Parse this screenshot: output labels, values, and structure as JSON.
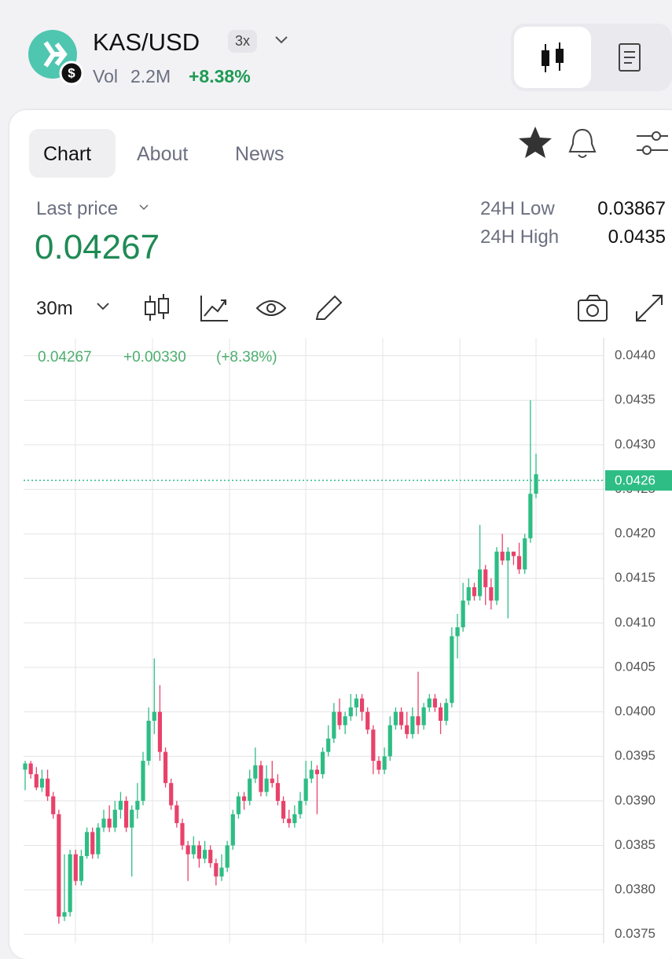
{
  "header": {
    "pair": "KAS/USD",
    "leverage": "3x",
    "volume_label": "Vol",
    "volume": "2.2M",
    "change": "+8.38%"
  },
  "tabs": [
    "Chart",
    "About",
    "News"
  ],
  "price": {
    "last_label": "Last price",
    "last": "0.04267",
    "low_label": "24H Low",
    "low": "0.03867",
    "high_label": "24H High",
    "high": "0.0435"
  },
  "toolbar": {
    "interval": "30m"
  },
  "chart_data": {
    "type": "candlestick",
    "legend": {
      "price": "0.04267",
      "change": "+0.00330",
      "percent": "(+8.38%)"
    },
    "up_color": "#2ebd85",
    "down_color": "#e8426a",
    "grid": true,
    "price_line": 0.0426,
    "ylim": [
      0.0374,
      0.0442
    ],
    "yticks": [
      {
        "value": 0.044,
        "label": "0.0440"
      },
      0.0435,
      {
        "value": 0.043,
        "label": "0.0430"
      },
      0.0425,
      {
        "value": 0.042,
        "label": "0.0420"
      },
      0.0415,
      {
        "value": 0.041,
        "label": "0.0410"
      },
      0.0405,
      {
        "value": 0.04,
        "label": "0.0400"
      },
      0.0395,
      {
        "value": 0.039,
        "label": "0.0390"
      },
      0.0385,
      {
        "value": 0.038,
        "label": "0.0380"
      },
      0.0375
    ],
    "open": [
      0.03935,
      0.03942,
      0.0393,
      0.03915,
      0.03925,
      0.03905,
      0.03885,
      0.0377,
      0.03775,
      0.0384,
      0.0381,
      0.03838,
      0.03865,
      0.0384,
      0.0387,
      0.0388,
      0.0387,
      0.0389,
      0.039,
      0.0387,
      0.0389,
      0.039,
      0.03945,
      0.0399,
      0.04,
      0.03955,
      0.0392,
      0.03895,
      0.03875,
      0.0385,
      0.0384,
      0.0385,
      0.03835,
      0.03845,
      0.0383,
      0.03815,
      0.03825,
      0.0385,
      0.03885,
      0.03905,
      0.039,
      0.03925,
      0.0394,
      0.0391,
      0.03925,
      0.0392,
      0.039,
      0.0388,
      0.03875,
      0.03885,
      0.039,
      0.03925,
      0.03935,
      0.0393,
      0.03955,
      0.0397,
      0.04,
      0.03985,
      0.03995,
      0.04005,
      0.04015,
      0.04,
      0.0398,
      0.03945,
      0.03935,
      0.0395,
      0.03985,
      0.04,
      0.03985,
      0.03975,
      0.03995,
      0.03985,
      0.04005,
      0.04015,
      0.04005,
      0.0399,
      0.0401,
      0.04085,
      0.04095,
      0.04125,
      0.0414,
      0.0413,
      0.0416,
      0.0414,
      0.04125,
      0.0418,
      0.0417,
      0.0418,
      0.04175,
      0.0416,
      0.04195,
      0.04245
    ],
    "high": [
      0.03945,
      0.03945,
      0.03938,
      0.03935,
      0.03935,
      0.0391,
      0.0389,
      0.0384,
      0.03845,
      0.03845,
      0.03845,
      0.0387,
      0.0387,
      0.03875,
      0.0389,
      0.03895,
      0.039,
      0.0391,
      0.03905,
      0.03895,
      0.0392,
      0.03955,
      0.04005,
      0.0406,
      0.0403,
      0.0396,
      0.03925,
      0.039,
      0.0388,
      0.03855,
      0.0386,
      0.03855,
      0.03855,
      0.0385,
      0.03835,
      0.0384,
      0.03855,
      0.0389,
      0.0391,
      0.0391,
      0.03935,
      0.0396,
      0.03945,
      0.0394,
      0.03945,
      0.0393,
      0.03905,
      0.0389,
      0.03895,
      0.0391,
      0.03945,
      0.03945,
      0.0394,
      0.0396,
      0.03985,
      0.0401,
      0.04015,
      0.04,
      0.0402,
      0.0402,
      0.0402,
      0.04005,
      0.03985,
      0.0395,
      0.0396,
      0.03995,
      0.04005,
      0.04005,
      0.04,
      0.04005,
      0.04045,
      0.0401,
      0.0402,
      0.0402,
      0.0401,
      0.04015,
      0.04095,
      0.0411,
      0.04145,
      0.0415,
      0.04145,
      0.0421,
      0.04165,
      0.0415,
      0.04185,
      0.042,
      0.04185,
      0.0418,
      0.0419,
      0.042,
      0.0435,
      0.0429
    ],
    "low": [
      0.03912,
      0.03925,
      0.03912,
      0.0391,
      0.039,
      0.0388,
      0.03762,
      0.03765,
      0.0377,
      0.03805,
      0.03805,
      0.03835,
      0.03835,
      0.03835,
      0.03865,
      0.03865,
      0.03865,
      0.0388,
      0.03865,
      0.03815,
      0.0388,
      0.03895,
      0.0394,
      0.03975,
      0.03945,
      0.03915,
      0.0389,
      0.0387,
      0.03845,
      0.0381,
      0.03835,
      0.03825,
      0.0383,
      0.03825,
      0.03805,
      0.0381,
      0.0382,
      0.03845,
      0.0388,
      0.0389,
      0.03895,
      0.0392,
      0.03905,
      0.03905,
      0.03915,
      0.03895,
      0.03875,
      0.0387,
      0.0387,
      0.0388,
      0.03895,
      0.0392,
      0.03885,
      0.03925,
      0.0395,
      0.03965,
      0.0398,
      0.03975,
      0.0399,
      0.03995,
      0.0399,
      0.03975,
      0.0393,
      0.0393,
      0.0393,
      0.03945,
      0.0398,
      0.0398,
      0.0397,
      0.0397,
      0.03975,
      0.0398,
      0.04,
      0.04,
      0.03975,
      0.03985,
      0.04005,
      0.0406,
      0.0409,
      0.0412,
      0.04125,
      0.04125,
      0.0412,
      0.04115,
      0.0412,
      0.04165,
      0.04105,
      0.04165,
      0.04155,
      0.04155,
      0.0419,
      0.0424
    ],
    "close": [
      0.03942,
      0.0393,
      0.03915,
      0.03925,
      0.03905,
      0.03885,
      0.0377,
      0.03775,
      0.0384,
      0.0381,
      0.03838,
      0.03865,
      0.0384,
      0.0387,
      0.0388,
      0.0387,
      0.0389,
      0.039,
      0.0387,
      0.0389,
      0.039,
      0.03945,
      0.0399,
      0.04,
      0.03955,
      0.0392,
      0.03895,
      0.03875,
      0.0385,
      0.0384,
      0.0385,
      0.03835,
      0.03845,
      0.0383,
      0.03815,
      0.03825,
      0.0385,
      0.03885,
      0.03905,
      0.039,
      0.03925,
      0.0394,
      0.0391,
      0.03925,
      0.0392,
      0.039,
      0.0388,
      0.03875,
      0.03885,
      0.039,
      0.03925,
      0.03935,
      0.0393,
      0.03955,
      0.0397,
      0.04,
      0.03985,
      0.03995,
      0.04005,
      0.04015,
      0.04,
      0.0398,
      0.03945,
      0.03935,
      0.0395,
      0.03985,
      0.04,
      0.03985,
      0.03975,
      0.03995,
      0.03985,
      0.04005,
      0.04015,
      0.04005,
      0.0399,
      0.0401,
      0.04085,
      0.04095,
      0.04125,
      0.0414,
      0.0413,
      0.0416,
      0.0414,
      0.04125,
      0.0418,
      0.0417,
      0.0418,
      0.04175,
      0.0416,
      0.04195,
      0.04245,
      0.04267
    ]
  }
}
